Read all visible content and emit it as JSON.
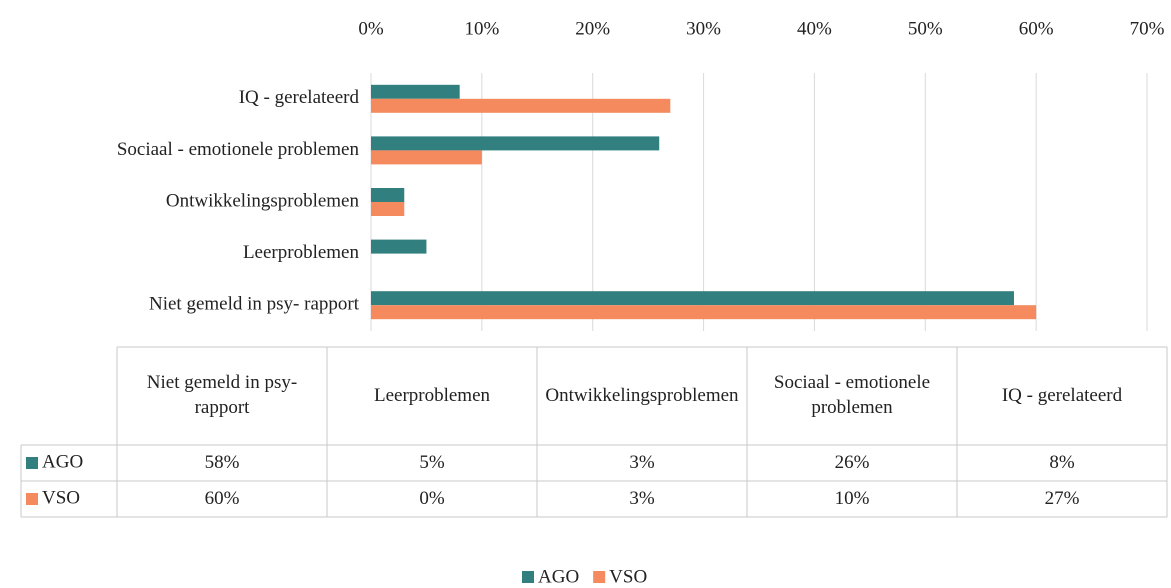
{
  "chart_data": {
    "type": "hbar",
    "categories": [
      "Niet gemeld in psy- rapport",
      "Leerproblemen",
      "Ontwikkelingsproblemen",
      "Sociaal - emotionele problemen",
      "IQ - gerelateerd"
    ],
    "series": [
      {
        "name": "AGO",
        "color": "#317f7e",
        "values": [
          58,
          5,
          3,
          26,
          8
        ],
        "value_labels": [
          "58%",
          "5%",
          "3%",
          "26%",
          "8%"
        ]
      },
      {
        "name": "VSO",
        "color": "#f48a5e",
        "values": [
          60,
          0,
          3,
          10,
          27
        ],
        "value_labels": [
          "60%",
          "0%",
          "3%",
          "10%",
          "27%"
        ]
      }
    ],
    "xlim": [
      0,
      70
    ],
    "xticks": [
      {
        "value": 0,
        "label": "0%"
      },
      {
        "value": 10,
        "label": "10%"
      },
      {
        "value": 20,
        "label": "20%"
      },
      {
        "value": 30,
        "label": "30%"
      },
      {
        "value": 40,
        "label": "40%"
      },
      {
        "value": 50,
        "label": "50%"
      },
      {
        "value": 60,
        "label": "60%"
      },
      {
        "value": 70,
        "label": "70%"
      }
    ],
    "grid": true,
    "legend": "bottom",
    "data_table": true
  }
}
